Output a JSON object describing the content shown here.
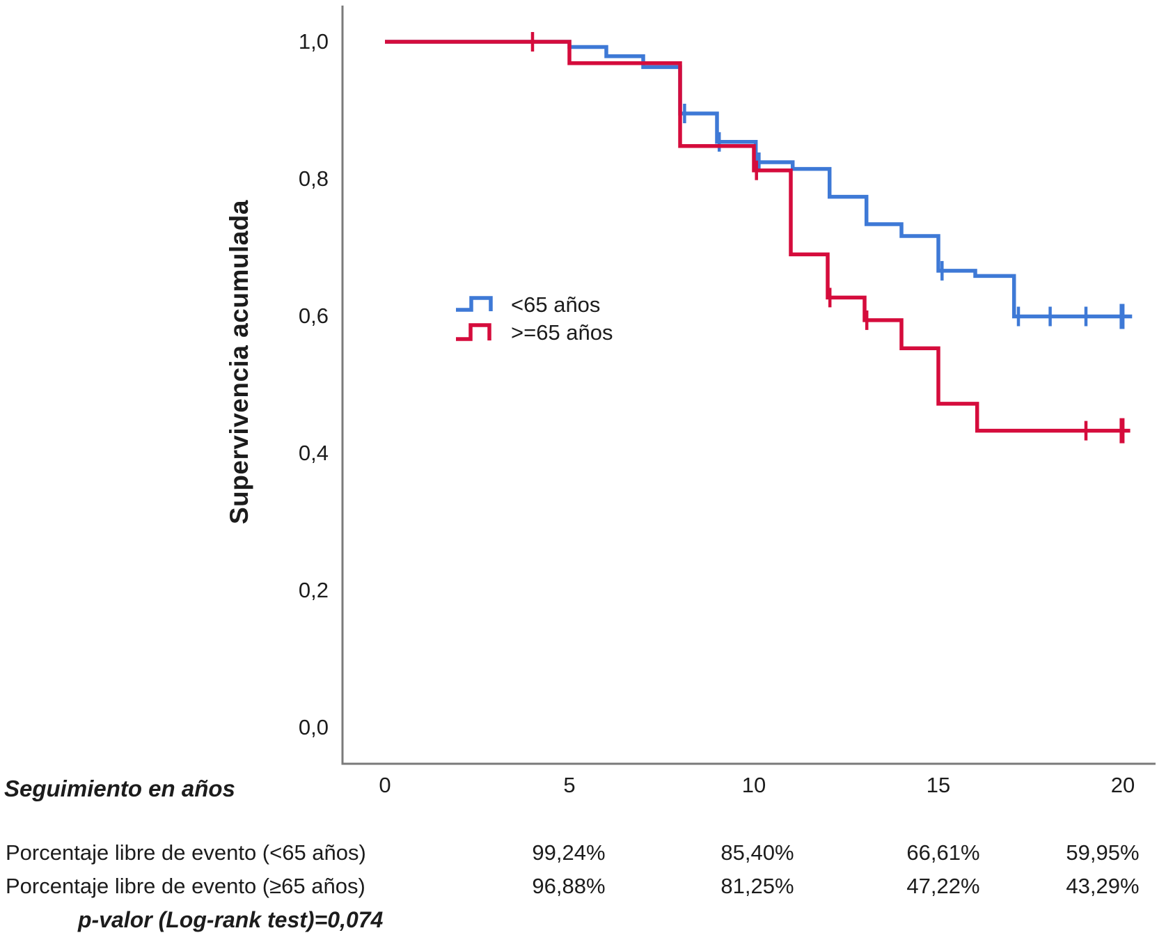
{
  "colors": {
    "series_lt65": "#3E79D6",
    "series_ge65": "#D50C3C",
    "axis": "#7a7a7a",
    "text": "#1c1c1c"
  },
  "y_axis": {
    "title": "Supervivencia acumulada",
    "tick_labels": [
      "1,0",
      "0,8",
      "0,6",
      "0,4",
      "0,2",
      "0,0"
    ]
  },
  "x_axis": {
    "title": "Seguimiento en años",
    "tick_labels": [
      "0",
      "5",
      "10",
      "15",
      "20"
    ]
  },
  "legend": {
    "items": [
      {
        "label": "<65 años",
        "color": "#3E79D6"
      },
      {
        "label": ">=65 años",
        "color": "#D50C3C"
      }
    ]
  },
  "footer": {
    "rows": [
      {
        "label": "Porcentaje libre de evento (<65 años)",
        "values": [
          "99,24%",
          "85,40%",
          "66,61%",
          "59,95%"
        ]
      },
      {
        "label": "Porcentaje libre de evento (≥65 años)",
        "values": [
          "96,88%",
          "81,25%",
          "47,22%",
          "43,29%"
        ]
      }
    ],
    "p_value": "p-valor (Log-rank test)=0,074"
  },
  "chart_data": {
    "type": "line",
    "subtype": "kaplan-meier-step",
    "title": "",
    "xlabel": "Seguimiento en años",
    "ylabel": "Supervivencia acumulada",
    "xlim": [
      0,
      20
    ],
    "ylim": [
      0.0,
      1.0
    ],
    "x_ticks": [
      0,
      5,
      10,
      15,
      20
    ],
    "y_ticks": [
      1.0,
      0.8,
      0.6,
      0.4,
      0.2,
      0.0
    ],
    "grid": false,
    "legend_position": "center-left-inside",
    "series": [
      {
        "id": "lt65",
        "name": "<65 años",
        "color": "#3E79D6",
        "steps": [
          [
            0,
            1.0
          ],
          [
            5,
            0.9924
          ],
          [
            6,
            0.979
          ],
          [
            7,
            0.963
          ],
          [
            8,
            0.8954
          ],
          [
            9,
            0.854
          ],
          [
            10.05,
            0.8244
          ],
          [
            11.05,
            0.8146
          ],
          [
            12.05,
            0.774
          ],
          [
            13.05,
            0.734
          ],
          [
            14,
            0.7168
          ],
          [
            15,
            0.6661
          ],
          [
            16,
            0.6585
          ],
          [
            17.05,
            0.5995
          ]
        ],
        "end_time": 20.25,
        "censors": [
          [
            8.12,
            0.8954
          ],
          [
            9.06,
            0.854
          ],
          [
            10.14,
            0.8244
          ],
          [
            15.1,
            0.6661
          ],
          [
            17.17,
            0.5995
          ],
          [
            18.03,
            0.5995
          ],
          [
            19.0,
            0.5995
          ]
        ],
        "end_censor": [
          19.98,
          0.5995
        ]
      },
      {
        "id": "ge65",
        "name": ">=65 años",
        "color": "#D50C3C",
        "steps": [
          [
            0,
            1.0
          ],
          [
            5,
            0.9688
          ],
          [
            8,
            0.848
          ],
          [
            10,
            0.8125
          ],
          [
            11,
            0.69
          ],
          [
            12,
            0.627
          ],
          [
            13,
            0.594
          ],
          [
            14,
            0.553
          ],
          [
            15,
            0.4722
          ],
          [
            16.05,
            0.4329
          ]
        ],
        "end_time": 20.2,
        "censors": [
          [
            4,
            1.0
          ],
          [
            10.07,
            0.8125
          ],
          [
            12.06,
            0.627
          ],
          [
            13.06,
            0.594
          ],
          [
            19.0,
            0.4329
          ]
        ],
        "end_censor": [
          19.98,
          0.4329
        ]
      }
    ],
    "table": {
      "at_years": [
        5,
        10,
        15,
        20
      ],
      "event_free_percent_lt65": [
        99.24,
        85.4,
        66.61,
        59.95
      ],
      "event_free_percent_ge65": [
        96.88,
        81.25,
        47.22,
        43.29
      ]
    },
    "annotations": {
      "p_value": "p-valor (Log-rank test)=0,074"
    }
  }
}
